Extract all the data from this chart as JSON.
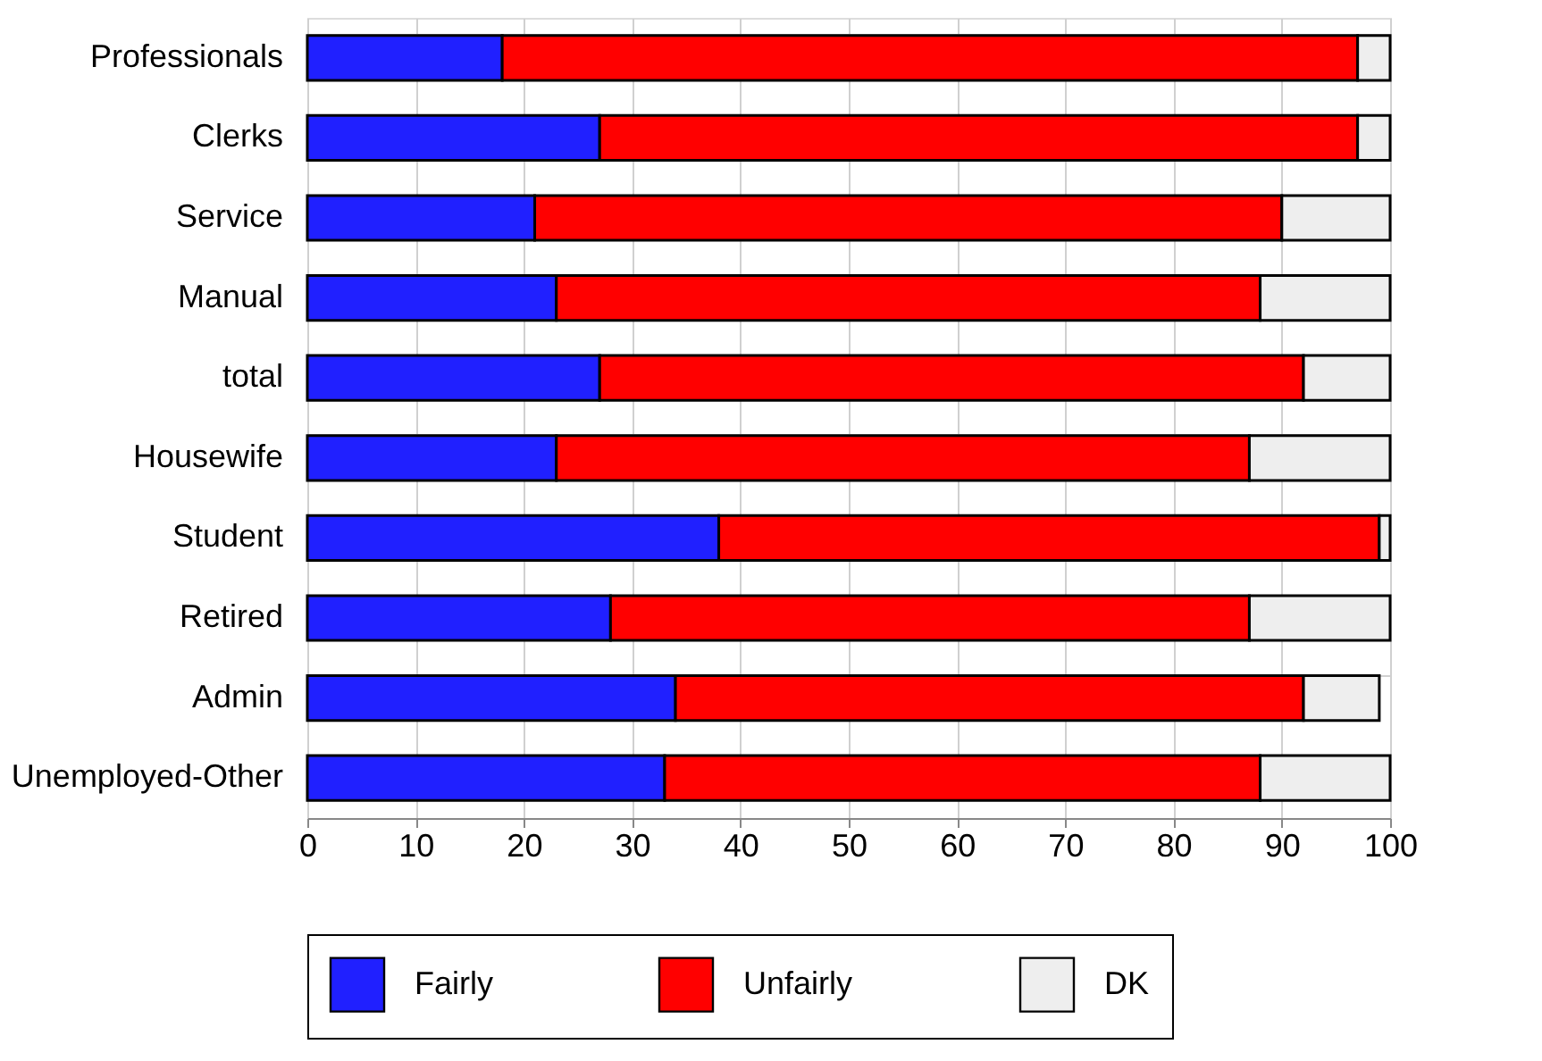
{
  "chart_data": {
    "type": "bar",
    "orientation": "horizontal",
    "stacked": true,
    "categories": [
      "Professionals",
      "Clerks",
      "Service",
      "Manual",
      "total",
      "Housewife",
      "Student",
      "Retired",
      "Admin",
      "Unemployed-Other"
    ],
    "series": [
      {
        "name": "Fairly",
        "color": "#2020ff",
        "values": [
          18,
          27,
          21,
          23,
          27,
          23,
          38,
          28,
          34,
          33
        ]
      },
      {
        "name": "Unfairly",
        "color": "#ff0000",
        "values": [
          79,
          70,
          69,
          65,
          65,
          64,
          61,
          59,
          58,
          55
        ]
      },
      {
        "name": "DK",
        "color": "#eeeeee",
        "values": [
          3,
          3,
          10,
          12,
          8,
          13,
          1,
          13,
          7,
          12
        ]
      }
    ],
    "xlim": [
      0,
      100
    ],
    "xticks": [
      0,
      10,
      20,
      30,
      40,
      50,
      60,
      70,
      80,
      90,
      100
    ],
    "grid": true,
    "legend": "bottom"
  }
}
